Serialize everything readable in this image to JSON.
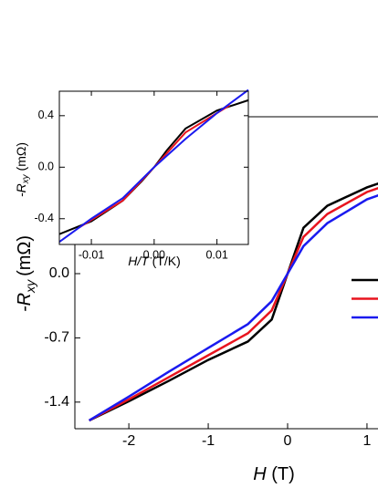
{
  "chart_data": [
    {
      "type": "line",
      "xlabel": {
        "main": "H",
        "unit": "(T)"
      },
      "ylabel": {
        "main": "-R",
        "sub": "xy",
        "unit": "(mΩ)"
      },
      "xlim": [
        -2.68,
        2.68
      ],
      "ylim": [
        -1.69,
        1.71
      ],
      "xticks": [
        -2,
        -1,
        0,
        1
      ],
      "yticks": [
        {
          "value": 0,
          "label": "0.0"
        },
        -0.7,
        -1.4
      ],
      "series": [
        {
          "color": "#000000",
          "x": [
            -2.5,
            -2,
            -1.5,
            -1,
            -0.5,
            -0.2,
            0,
            0.2,
            0.5,
            1,
            1.2
          ],
          "values": [
            -1.6,
            -1.39,
            -1.17,
            -0.94,
            -0.74,
            -0.5,
            0,
            0.5,
            0.74,
            0.94,
            1.0
          ]
        },
        {
          "color": "#e8141e",
          "x": [
            -2.5,
            -2,
            -1.5,
            -1,
            -0.5,
            -0.2,
            0,
            0.2,
            0.5,
            1,
            1.2
          ],
          "values": [
            -1.6,
            -1.37,
            -1.13,
            -0.89,
            -0.65,
            -0.4,
            0,
            0.4,
            0.65,
            0.89,
            0.95
          ]
        },
        {
          "color": "#1a1aef",
          "x": [
            -2.5,
            -2,
            -1.5,
            -1,
            -0.5,
            -0.2,
            0,
            0.2,
            0.5,
            1,
            1.2
          ],
          "values": [
            -1.6,
            -1.34,
            -1.07,
            -0.81,
            -0.55,
            -0.3,
            0,
            0.3,
            0.55,
            0.81,
            0.87
          ]
        }
      ]
    },
    {
      "type": "line",
      "xlabel": {
        "main": "H/T",
        "unit": "(T/K)"
      },
      "ylabel": {
        "main": "-R",
        "sub": "xy",
        "unit": "(mΩ)"
      },
      "xlim": [
        -0.0151,
        0.015
      ],
      "ylim": [
        -0.6,
        0.59
      ],
      "xticks": [
        -0.01,
        {
          "value": 0,
          "label": "0.00"
        },
        0.01
      ],
      "yticks": [
        0.4,
        {
          "value": 0,
          "label": "0.0"
        },
        -0.4
      ],
      "series": [
        {
          "color": "#000000",
          "x": [
            -0.0151,
            -0.01,
            -0.005,
            -0.002,
            0,
            0.002,
            0.005,
            0.01,
            0.015
          ],
          "values": [
            -0.52,
            -0.42,
            -0.26,
            -0.11,
            0,
            0.13,
            0.3,
            0.44,
            0.52
          ]
        },
        {
          "color": "#e8141e",
          "x": [
            -0.012,
            -0.005,
            0,
            0.005,
            0.012
          ],
          "values": [
            -0.47,
            -0.26,
            0,
            0.27,
            0.48
          ]
        },
        {
          "color": "#1a1aef",
          "x": [
            -0.0151,
            -0.01,
            -0.005,
            0,
            0.005,
            0.01,
            0.015
          ],
          "values": [
            -0.58,
            -0.4,
            -0.24,
            0,
            0.22,
            0.42,
            0.6
          ]
        }
      ]
    }
  ]
}
